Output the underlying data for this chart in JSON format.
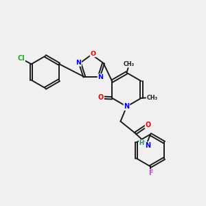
{
  "bg_color": "#f0f0f0",
  "bond_color": "#1a1a1a",
  "atom_colors": {
    "N": "#0000ee",
    "O": "#ee0000",
    "Cl": "#22aa22",
    "F": "#cc44cc",
    "H": "#228888",
    "C": "#1a1a1a"
  },
  "fig_width": 3.0,
  "fig_height": 3.0,
  "dpi": 100,
  "lw": 1.4
}
